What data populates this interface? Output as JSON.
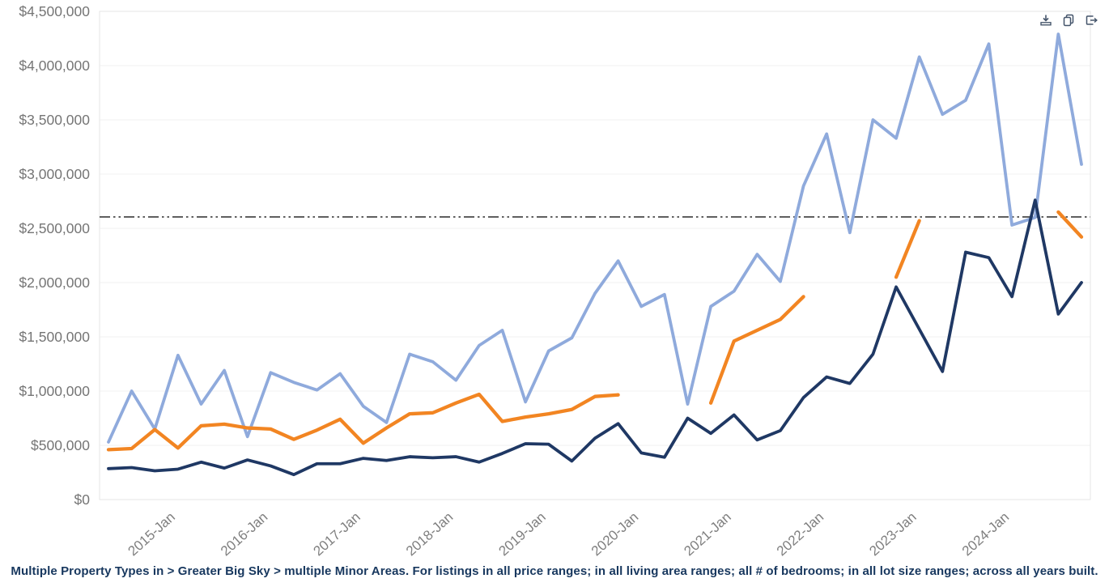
{
  "caption": "Multiple Property Types in > Greater Big Sky > multiple Minor Areas. For listings in all price ranges; in all living area ranges; all # of bedrooms; in all lot size ranges; across all years built.",
  "toolbar": {
    "icons": [
      {
        "name": "download-icon"
      },
      {
        "name": "copy-icon"
      },
      {
        "name": "export-icon"
      }
    ],
    "icon_color": "#44546A"
  },
  "chart_data": {
    "type": "line",
    "title": "",
    "xlabel": "",
    "ylabel": "",
    "grid": true,
    "legend_position": "none",
    "categories": [
      "2014-Jul",
      "2014-Oct",
      "2015-Jan",
      "2015-Apr",
      "2015-Jul",
      "2015-Oct",
      "2016-Jan",
      "2016-Apr",
      "2016-Jul",
      "2016-Oct",
      "2017-Jan",
      "2017-Apr",
      "2017-Jul",
      "2017-Oct",
      "2018-Jan",
      "2018-Apr",
      "2018-Jul",
      "2018-Oct",
      "2019-Jan",
      "2019-Apr",
      "2019-Jul",
      "2019-Oct",
      "2020-Jan",
      "2020-Apr",
      "2020-Jul",
      "2020-Oct",
      "2021-Jan",
      "2021-Apr",
      "2021-Jul",
      "2021-Oct",
      "2022-Jan",
      "2022-Apr",
      "2022-Jul",
      "2022-Oct",
      "2023-Jan",
      "2023-Apr",
      "2023-Jul",
      "2023-Oct",
      "2024-Jan",
      "2024-Apr",
      "2024-Jul",
      "2024-Oct",
      "2025-Jan"
    ],
    "series": [
      {
        "name": "series_light_blue",
        "color": "#8FAADC",
        "values": [
          530000,
          1000000,
          650000,
          1330000,
          880000,
          1190000,
          580000,
          1170000,
          1080000,
          1010000,
          1160000,
          860000,
          710000,
          1340000,
          1270000,
          1100000,
          1420000,
          1560000,
          900000,
          1370000,
          1490000,
          1900000,
          2200000,
          1780000,
          1890000,
          880000,
          1780000,
          1920000,
          2260000,
          2010000,
          2890000,
          3370000,
          2460000,
          3500000,
          3330000,
          4080000,
          3550000,
          3680000,
          4200000,
          2530000,
          2600000,
          4290000,
          3090000
        ]
      },
      {
        "name": "series_orange",
        "color": "#F28522",
        "values": [
          460000,
          470000,
          645000,
          475000,
          680000,
          695000,
          660000,
          650000,
          555000,
          640000,
          740000,
          520000,
          660000,
          790000,
          800000,
          890000,
          970000,
          720000,
          760000,
          790000,
          830000,
          950000,
          965000,
          null,
          null,
          null,
          890000,
          1460000,
          1560000,
          1660000,
          1870000,
          null,
          null,
          null,
          2050000,
          2570000,
          null,
          null,
          null,
          null,
          null,
          2650000,
          2420000
        ]
      },
      {
        "name": "series_navy",
        "color": "#1F3864",
        "values": [
          285000,
          295000,
          265000,
          280000,
          345000,
          290000,
          365000,
          310000,
          230000,
          330000,
          330000,
          380000,
          360000,
          395000,
          385000,
          395000,
          345000,
          425000,
          515000,
          510000,
          355000,
          565000,
          700000,
          430000,
          390000,
          750000,
          610000,
          780000,
          550000,
          635000,
          940000,
          1130000,
          1070000,
          1340000,
          1960000,
          1570000,
          1180000,
          2280000,
          2230000,
          1870000,
          2760000,
          1710000,
          2000000
        ]
      }
    ],
    "reference_line": {
      "value": 2605000,
      "style": "dash-dot-dot",
      "color": "#3b3b3b"
    },
    "y_axis": {
      "min": 0,
      "max": 4500000,
      "step": 500000,
      "tick_labels": [
        "$0",
        "$500,000",
        "$1,000,000",
        "$1,500,000",
        "$2,000,000",
        "$2,500,000",
        "$3,000,000",
        "$3,500,000",
        "$4,000,000",
        "$4,500,000"
      ],
      "label_color": "#757575"
    },
    "x_axis": {
      "tick_labels": [
        "2015-Jan",
        "2016-Jan",
        "2017-Jan",
        "2018-Jan",
        "2019-Jan",
        "2020-Jan",
        "2021-Jan",
        "2022-Jan",
        "2023-Jan",
        "2024-Jan"
      ],
      "label_color": "#7f7f7f"
    }
  }
}
